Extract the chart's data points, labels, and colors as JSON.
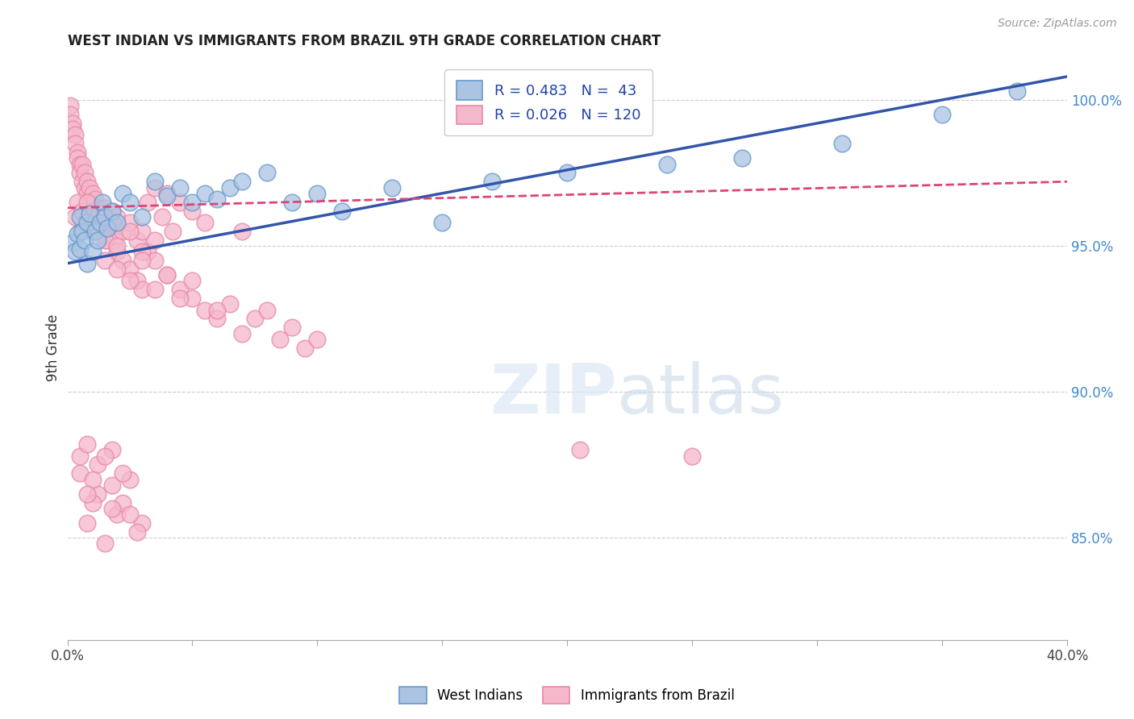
{
  "title": "WEST INDIAN VS IMMIGRANTS FROM BRAZIL 9TH GRADE CORRELATION CHART",
  "source": "Source: ZipAtlas.com",
  "ylabel": "9th Grade",
  "ylabel_right_labels": [
    "85.0%",
    "90.0%",
    "95.0%",
    "100.0%"
  ],
  "ylabel_right_values": [
    0.85,
    0.9,
    0.95,
    1.0
  ],
  "xlim": [
    0.0,
    0.4
  ],
  "ylim": [
    0.815,
    1.015
  ],
  "legend_blue_r": "R = 0.483",
  "legend_blue_n": "N =  43",
  "legend_pink_r": "R = 0.026",
  "legend_pink_n": "N = 120",
  "legend_label_blue": "West Indians",
  "legend_label_pink": "Immigrants from Brazil",
  "blue_color": "#aac4e2",
  "pink_color": "#f5b8cb",
  "blue_edge_color": "#6699cc",
  "pink_edge_color": "#e888aa",
  "blue_line_color": "#3355aa",
  "pink_line_color": "#dd4477",
  "blue_scatter": [
    [
      0.002,
      0.951
    ],
    [
      0.003,
      0.948
    ],
    [
      0.004,
      0.954
    ],
    [
      0.005,
      0.949
    ],
    [
      0.005,
      0.96
    ],
    [
      0.006,
      0.955
    ],
    [
      0.007,
      0.952
    ],
    [
      0.008,
      0.958
    ],
    [
      0.008,
      0.944
    ],
    [
      0.009,
      0.961
    ],
    [
      0.01,
      0.948
    ],
    [
      0.011,
      0.955
    ],
    [
      0.012,
      0.952
    ],
    [
      0.013,
      0.958
    ],
    [
      0.014,
      0.965
    ],
    [
      0.015,
      0.96
    ],
    [
      0.016,
      0.956
    ],
    [
      0.018,
      0.962
    ],
    [
      0.02,
      0.958
    ],
    [
      0.022,
      0.968
    ],
    [
      0.025,
      0.965
    ],
    [
      0.03,
      0.96
    ],
    [
      0.035,
      0.972
    ],
    [
      0.04,
      0.967
    ],
    [
      0.045,
      0.97
    ],
    [
      0.05,
      0.965
    ],
    [
      0.055,
      0.968
    ],
    [
      0.06,
      0.966
    ],
    [
      0.065,
      0.97
    ],
    [
      0.07,
      0.972
    ],
    [
      0.08,
      0.975
    ],
    [
      0.09,
      0.965
    ],
    [
      0.1,
      0.968
    ],
    [
      0.11,
      0.962
    ],
    [
      0.13,
      0.97
    ],
    [
      0.15,
      0.958
    ],
    [
      0.17,
      0.972
    ],
    [
      0.2,
      0.975
    ],
    [
      0.24,
      0.978
    ],
    [
      0.27,
      0.98
    ],
    [
      0.31,
      0.985
    ],
    [
      0.35,
      0.995
    ],
    [
      0.38,
      1.003
    ]
  ],
  "pink_scatter": [
    [
      0.001,
      0.998
    ],
    [
      0.001,
      0.995
    ],
    [
      0.002,
      0.992
    ],
    [
      0.002,
      0.99
    ],
    [
      0.003,
      0.988
    ],
    [
      0.003,
      0.985
    ],
    [
      0.004,
      0.982
    ],
    [
      0.004,
      0.98
    ],
    [
      0.005,
      0.978
    ],
    [
      0.005,
      0.975
    ],
    [
      0.006,
      0.978
    ],
    [
      0.006,
      0.972
    ],
    [
      0.007,
      0.975
    ],
    [
      0.007,
      0.97
    ],
    [
      0.008,
      0.972
    ],
    [
      0.008,
      0.968
    ],
    [
      0.009,
      0.97
    ],
    [
      0.009,
      0.965
    ],
    [
      0.01,
      0.968
    ],
    [
      0.01,
      0.963
    ],
    [
      0.011,
      0.966
    ],
    [
      0.011,
      0.96
    ],
    [
      0.012,
      0.963
    ],
    [
      0.012,
      0.958
    ],
    [
      0.013,
      0.961
    ],
    [
      0.013,
      0.956
    ],
    [
      0.014,
      0.958
    ],
    [
      0.015,
      0.963
    ],
    [
      0.015,
      0.955
    ],
    [
      0.016,
      0.96
    ],
    [
      0.016,
      0.952
    ],
    [
      0.017,
      0.958
    ],
    [
      0.018,
      0.955
    ],
    [
      0.018,
      0.962
    ],
    [
      0.019,
      0.952
    ],
    [
      0.02,
      0.96
    ],
    [
      0.02,
      0.948
    ],
    [
      0.022,
      0.955
    ],
    [
      0.022,
      0.945
    ],
    [
      0.025,
      0.958
    ],
    [
      0.025,
      0.942
    ],
    [
      0.028,
      0.952
    ],
    [
      0.028,
      0.938
    ],
    [
      0.03,
      0.955
    ],
    [
      0.03,
      0.935
    ],
    [
      0.032,
      0.948
    ],
    [
      0.032,
      0.965
    ],
    [
      0.035,
      0.945
    ],
    [
      0.035,
      0.97
    ],
    [
      0.038,
      0.96
    ],
    [
      0.04,
      0.94
    ],
    [
      0.04,
      0.968
    ],
    [
      0.042,
      0.955
    ],
    [
      0.045,
      0.935
    ],
    [
      0.045,
      0.965
    ],
    [
      0.05,
      0.932
    ],
    [
      0.05,
      0.962
    ],
    [
      0.055,
      0.928
    ],
    [
      0.055,
      0.958
    ],
    [
      0.06,
      0.925
    ],
    [
      0.065,
      0.93
    ],
    [
      0.07,
      0.92
    ],
    [
      0.07,
      0.955
    ],
    [
      0.075,
      0.925
    ],
    [
      0.08,
      0.928
    ],
    [
      0.085,
      0.918
    ],
    [
      0.09,
      0.922
    ],
    [
      0.095,
      0.915
    ],
    [
      0.1,
      0.918
    ],
    [
      0.003,
      0.96
    ],
    [
      0.004,
      0.965
    ],
    [
      0.005,
      0.955
    ],
    [
      0.006,
      0.962
    ],
    [
      0.007,
      0.958
    ],
    [
      0.008,
      0.965
    ],
    [
      0.009,
      0.96
    ],
    [
      0.01,
      0.955
    ],
    [
      0.012,
      0.96
    ],
    [
      0.015,
      0.952
    ],
    [
      0.018,
      0.958
    ],
    [
      0.02,
      0.95
    ],
    [
      0.025,
      0.955
    ],
    [
      0.03,
      0.948
    ],
    [
      0.035,
      0.952
    ],
    [
      0.015,
      0.945
    ],
    [
      0.02,
      0.942
    ],
    [
      0.025,
      0.938
    ],
    [
      0.03,
      0.945
    ],
    [
      0.035,
      0.935
    ],
    [
      0.04,
      0.94
    ],
    [
      0.045,
      0.932
    ],
    [
      0.05,
      0.938
    ],
    [
      0.06,
      0.928
    ],
    [
      0.005,
      0.878
    ],
    [
      0.008,
      0.882
    ],
    [
      0.012,
      0.875
    ],
    [
      0.015,
      0.848
    ],
    [
      0.018,
      0.88
    ],
    [
      0.025,
      0.87
    ],
    [
      0.008,
      0.855
    ],
    [
      0.012,
      0.865
    ],
    [
      0.02,
      0.858
    ],
    [
      0.018,
      0.868
    ],
    [
      0.022,
      0.862
    ],
    [
      0.005,
      0.872
    ],
    [
      0.015,
      0.878
    ],
    [
      0.01,
      0.862
    ],
    [
      0.03,
      0.855
    ],
    [
      0.025,
      0.858
    ],
    [
      0.01,
      0.87
    ],
    [
      0.008,
      0.865
    ],
    [
      0.022,
      0.872
    ],
    [
      0.018,
      0.86
    ],
    [
      0.028,
      0.852
    ],
    [
      0.25,
      0.878
    ],
    [
      0.205,
      0.88
    ]
  ]
}
